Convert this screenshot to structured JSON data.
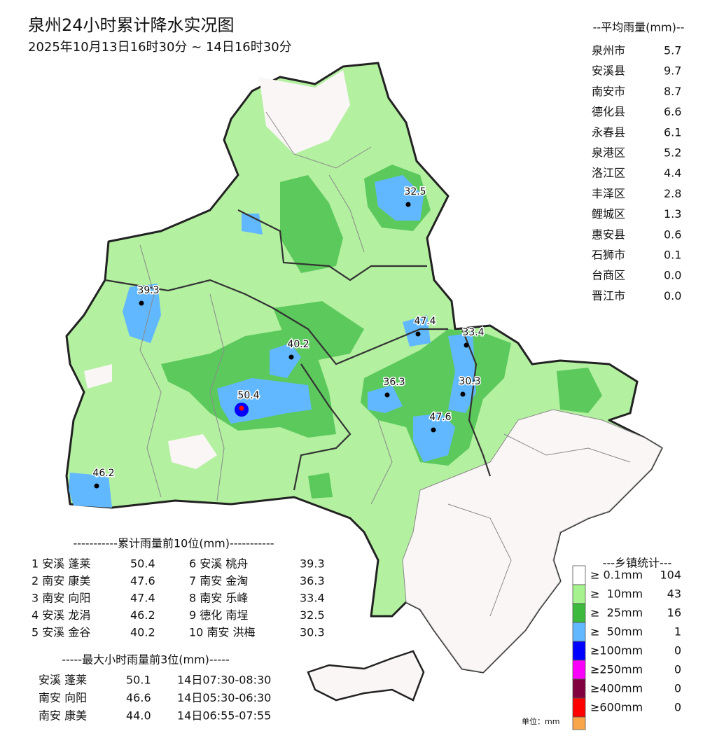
{
  "header": {
    "title": "泉州24小时累计降水实况图",
    "subtitle": "2025年10月13日16时30分 ~ 14日16时30分"
  },
  "average": {
    "title": "--平均雨量(mm)--",
    "rows": [
      [
        "泉州市",
        "5.7"
      ],
      [
        "安溪县",
        "9.7"
      ],
      [
        "南安市",
        "8.7"
      ],
      [
        "德化县",
        "6.6"
      ],
      [
        "永春县",
        "6.1"
      ],
      [
        "泉港区",
        "5.2"
      ],
      [
        "洛江区",
        "4.4"
      ],
      [
        "丰泽区",
        "2.8"
      ],
      [
        "鲤城区",
        "1.3"
      ],
      [
        "惠安县",
        "0.6"
      ],
      [
        "石狮市",
        "0.1"
      ],
      [
        "台商区",
        "0.0"
      ],
      [
        "晋江市",
        "0.0"
      ]
    ]
  },
  "stations": [
    {
      "label": "32.5",
      "color": "#000000"
    },
    {
      "label": "39.3",
      "color": "#000000"
    },
    {
      "label": "47.4",
      "color": "#000000"
    },
    {
      "label": "33.4",
      "color": "#000000"
    },
    {
      "label": "40.2",
      "color": "#000000"
    },
    {
      "label": "50.4",
      "color": "#ff0000"
    },
    {
      "label": "36.3",
      "color": "#000000"
    },
    {
      "label": "30.3",
      "color": "#000000"
    },
    {
      "label": "47.6",
      "color": "#000000"
    },
    {
      "label": "46.2",
      "color": "#000000"
    }
  ],
  "top10": {
    "title": "-----------累计雨量前10位(mm)-----------",
    "rows": [
      [
        "1 安溪 蓬莱",
        "50.4"
      ],
      [
        "2 南安 康美",
        "47.6"
      ],
      [
        "3 南安 向阳",
        "47.4"
      ],
      [
        "4 安溪 龙涓",
        "46.2"
      ],
      [
        "5 安溪 金谷",
        "40.2"
      ],
      [
        "6 安溪 桃舟",
        "39.3"
      ],
      [
        "7 南安 金淘",
        "36.3"
      ],
      [
        "8 南安 乐峰",
        "33.4"
      ],
      [
        "9 德化 南埕",
        "32.5"
      ],
      [
        "10 南安 洪梅",
        "30.3"
      ]
    ]
  },
  "max_hourly": {
    "title": "-----最大小时雨量前3位(mm)-----",
    "rows": [
      [
        "安溪 蓬莱",
        "50.1",
        "14日07:30-08:30"
      ],
      [
        "南安 向阳",
        "46.6",
        "14日05:30-06:30"
      ],
      [
        "南安 康美",
        "44.0",
        "14日06:55-07:55"
      ]
    ]
  },
  "legend": {
    "title": "---乡镇统计---",
    "items": [
      {
        "label": "≥ 0.1mm",
        "count": "104",
        "color": "#ffffff"
      },
      {
        "label": "≥  10mm",
        "count": "43",
        "color": "#a6f28f"
      },
      {
        "label": "≥  25mm",
        "count": "16",
        "color": "#3dba3d"
      },
      {
        "label": "≥  50mm",
        "count": "1",
        "color": "#61b8ff"
      },
      {
        "label": "≥100mm",
        "count": "0",
        "color": "#0000fe"
      },
      {
        "label": "≥250mm",
        "count": "0",
        "color": "#fa00fa"
      },
      {
        "label": "≥400mm",
        "count": "0",
        "color": "#800040"
      },
      {
        "label": "≥600mm",
        "count": "0",
        "color": "#fe0000"
      }
    ],
    "extra_color": "#f9a54a",
    "unit": "单位：mm"
  }
}
